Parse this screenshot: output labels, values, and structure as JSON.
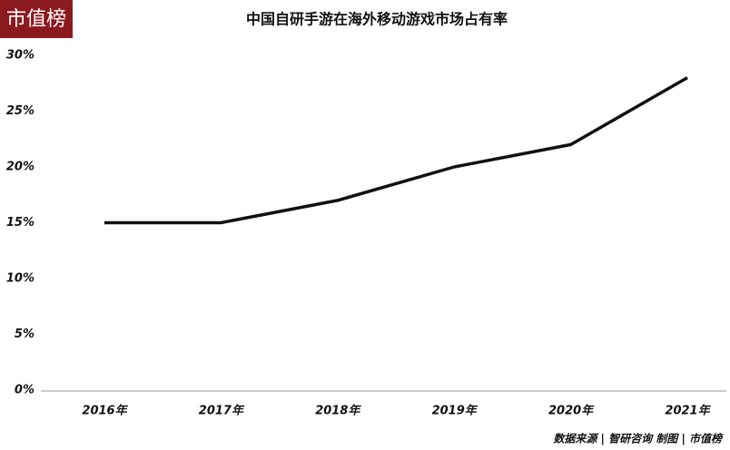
{
  "logo": "市值榜",
  "source": "数据来源 | 智研咨询  制图 | 市值榜",
  "chart_data": {
    "type": "line",
    "title": "中国自研手游在海外移动游戏市场占有率",
    "categories": [
      "2016年",
      "2017年",
      "2018年",
      "2019年",
      "2020年",
      "2021年"
    ],
    "series": [
      {
        "name": "市场占有率",
        "color": "#111111",
        "values": [
          15,
          15,
          17,
          20,
          22,
          28
        ]
      }
    ],
    "ylim": [
      0,
      30
    ],
    "yticks": [
      {
        "value": 0,
        "label": "0%"
      },
      {
        "value": 5,
        "label": "5%"
      },
      {
        "value": 10,
        "label": "10%"
      },
      {
        "value": 15,
        "label": "15%"
      },
      {
        "value": 20,
        "label": "20%"
      },
      {
        "value": 25,
        "label": "25%"
      },
      {
        "value": 30,
        "label": "30%"
      }
    ],
    "grid": false
  }
}
